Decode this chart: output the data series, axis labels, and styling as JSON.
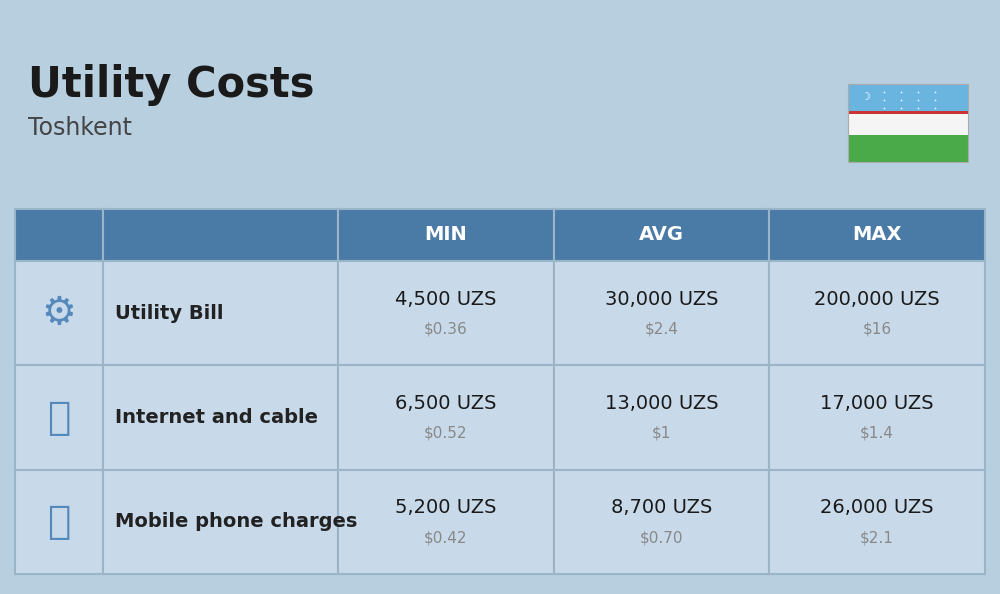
{
  "title": "Utility Costs",
  "subtitle": "Toshkent",
  "background_color": "#b8cfe0",
  "header_bg_color": "#4a7aa6",
  "header_text_color": "#ffffff",
  "row_bg_color": "#c8daea",
  "table_border_color": "#9ab5c8",
  "col_headers": [
    "MIN",
    "AVG",
    "MAX"
  ],
  "rows": [
    {
      "label": "Utility Bill",
      "icon": "utility",
      "min_uzs": "4,500 UZS",
      "min_usd": "$0.36",
      "avg_uzs": "30,000 UZS",
      "avg_usd": "$2.4",
      "max_uzs": "200,000 UZS",
      "max_usd": "$16"
    },
    {
      "label": "Internet and cable",
      "icon": "internet",
      "min_uzs": "6,500 UZS",
      "min_usd": "$0.52",
      "avg_uzs": "13,000 UZS",
      "avg_usd": "$1",
      "max_uzs": "17,000 UZS",
      "max_usd": "$1.4"
    },
    {
      "label": "Mobile phone charges",
      "icon": "mobile",
      "min_uzs": "5,200 UZS",
      "min_usd": "$0.42",
      "avg_uzs": "8,700 UZS",
      "avg_usd": "$0.70",
      "max_uzs": "26,000 UZS",
      "max_usd": "$2.1"
    }
  ],
  "title_fontsize": 30,
  "subtitle_fontsize": 17,
  "header_fontsize": 14,
  "label_fontsize": 14,
  "value_fontsize": 14,
  "usd_fontsize": 11,
  "flag_stripe_colors": [
    "#6ab4e0",
    "#ffffff",
    "#4aaa4a"
  ],
  "flag_thin_colors": [
    "#cc4444",
    "#cc4444"
  ],
  "usd_color": "#888888",
  "text_color": "#1a1a1a",
  "label_text_color": "#222222"
}
